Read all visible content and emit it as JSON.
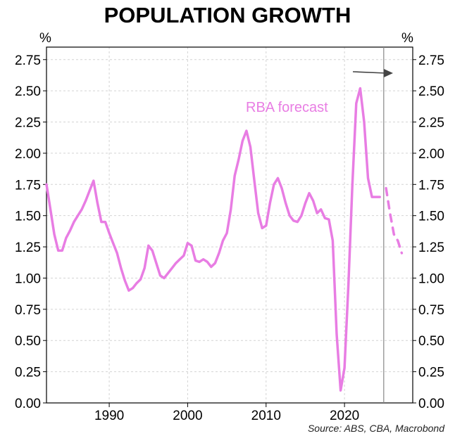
{
  "chart_data": {
    "type": "line",
    "title": "POPULATION GROWTH",
    "ylabel_left": "%",
    "ylabel_right": "%",
    "source": "Source: ABS, CBA, Macrobond",
    "xlim": [
      1982,
      2028.7
    ],
    "ylim": [
      0,
      2.85
    ],
    "yticks": [
      "0.00",
      "0.25",
      "0.50",
      "0.75",
      "1.00",
      "1.25",
      "1.50",
      "1.75",
      "2.00",
      "2.25",
      "2.50",
      "2.75"
    ],
    "xticks": [
      "1990",
      "2000",
      "2010",
      "2020"
    ],
    "grid": true,
    "forecast_start": 2025.0,
    "series": [
      {
        "name": "Population growth",
        "style": "solid",
        "color": "#e87de3",
        "x": [
          1982.0,
          1982.5,
          1983.0,
          1983.5,
          1984.0,
          1984.5,
          1985.0,
          1985.5,
          1986.0,
          1986.5,
          1987.0,
          1987.5,
          1988.0,
          1988.5,
          1989.0,
          1989.5,
          1990.0,
          1990.5,
          1991.0,
          1991.5,
          1992.0,
          1992.5,
          1993.0,
          1993.5,
          1994.0,
          1994.5,
          1995.0,
          1995.5,
          1996.0,
          1996.5,
          1997.0,
          1997.5,
          1998.0,
          1998.5,
          1999.0,
          1999.5,
          2000.0,
          2000.5,
          2001.0,
          2001.5,
          2002.0,
          2002.5,
          2003.0,
          2003.5,
          2004.0,
          2004.5,
          2005.0,
          2005.5,
          2006.0,
          2006.5,
          2007.0,
          2007.5,
          2008.0,
          2008.5,
          2009.0,
          2009.5,
          2010.0,
          2010.5,
          2011.0,
          2011.5,
          2012.0,
          2012.5,
          2013.0,
          2013.5,
          2014.0,
          2014.5,
          2015.0,
          2015.5,
          2016.0,
          2016.5,
          2017.0,
          2017.5,
          2018.0,
          2018.5,
          2019.0,
          2019.5,
          2020.0,
          2020.5,
          2021.0,
          2021.5,
          2022.0,
          2022.5,
          2023.0,
          2023.5,
          2024.0,
          2024.5
        ],
        "values": [
          1.75,
          1.55,
          1.35,
          1.22,
          1.22,
          1.32,
          1.38,
          1.45,
          1.5,
          1.55,
          1.62,
          1.7,
          1.78,
          1.6,
          1.45,
          1.45,
          1.36,
          1.28,
          1.2,
          1.08,
          0.98,
          0.9,
          0.92,
          0.96,
          0.99,
          1.08,
          1.26,
          1.22,
          1.12,
          1.02,
          1.0,
          1.04,
          1.08,
          1.12,
          1.15,
          1.18,
          1.28,
          1.26,
          1.14,
          1.13,
          1.15,
          1.13,
          1.09,
          1.12,
          1.2,
          1.3,
          1.36,
          1.55,
          1.82,
          1.95,
          2.1,
          2.18,
          2.05,
          1.78,
          1.52,
          1.4,
          1.42,
          1.6,
          1.75,
          1.8,
          1.72,
          1.6,
          1.5,
          1.46,
          1.45,
          1.5,
          1.6,
          1.68,
          1.62,
          1.52,
          1.55,
          1.48,
          1.47,
          1.3,
          0.55,
          0.1,
          0.28,
          0.95,
          1.75,
          2.4,
          2.52,
          2.25,
          1.8,
          1.65,
          1.65,
          1.65
        ]
      },
      {
        "name": "RBA forecast",
        "style": "dashed",
        "color": "#e87de3",
        "x": [
          2025.3,
          2025.8,
          2026.3,
          2026.8,
          2027.3
        ],
        "values": [
          1.72,
          1.52,
          1.35,
          1.3,
          1.2
        ]
      }
    ],
    "annotation_text": "RBA forecast",
    "annotation_color": "#e87de3",
    "arrow_label": "forecast arrow"
  }
}
